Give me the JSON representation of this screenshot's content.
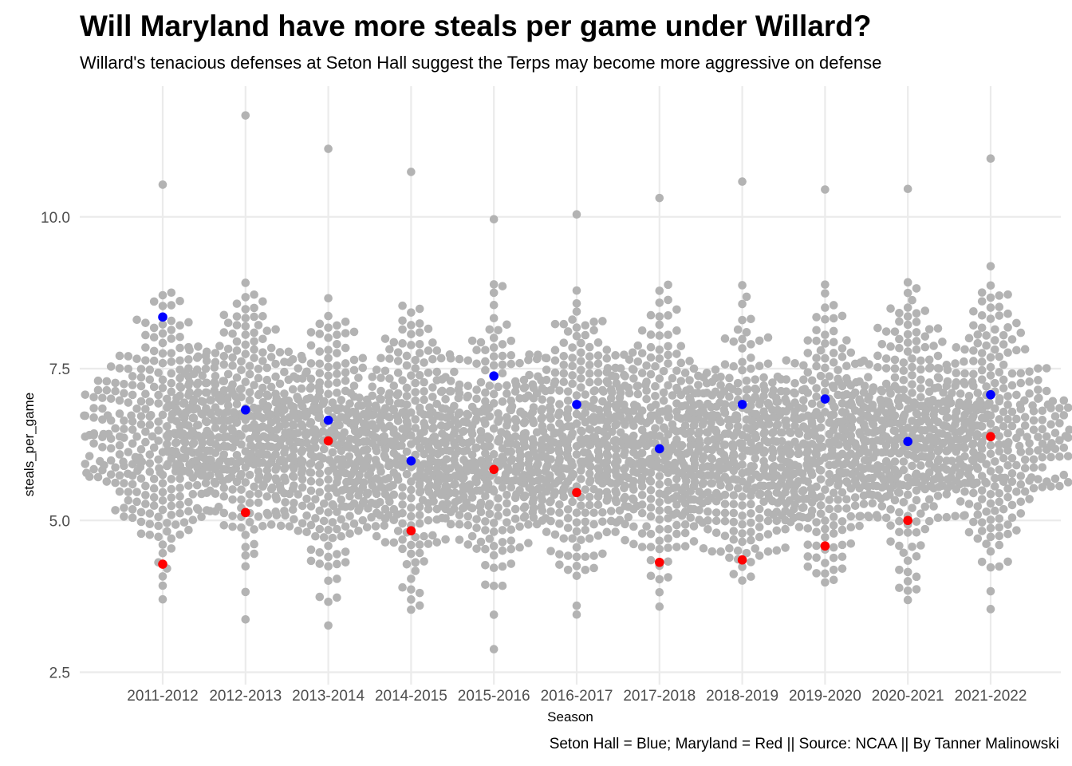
{
  "title": "Will Maryland have more steals per game under Willard?",
  "subtitle": "Willard's tenacious defenses at Seton Hall suggest the Terps may become more aggressive on defense",
  "caption": "Seton Hall = Blue; Maryland = Red || Source: NCAA || By Tanner Malinowski",
  "chart_data": {
    "type": "scatter",
    "xlabel": "Season",
    "ylabel": "steals_per_game",
    "categories": [
      "2011-2012",
      "2012-2013",
      "2013-2014",
      "2014-2015",
      "2015-2016",
      "2016-2017",
      "2017-2018",
      "2018-2019",
      "2019-2020",
      "2020-2021",
      "2021-2022"
    ],
    "ylim": [
      2.5,
      12.0
    ],
    "yticks": [
      2.5,
      5.0,
      7.5,
      10.0
    ],
    "ytick_labels": [
      "2.5",
      "5.0",
      "7.5",
      "10.0"
    ],
    "grid": true,
    "colors": {
      "all_teams": "#b3b3b3",
      "seton_hall": "#0000ff",
      "maryland": "#ff0000",
      "grid": "#ebebeb"
    },
    "series": [
      {
        "values": [
          8.35,
          6.82,
          6.65,
          5.98,
          7.38,
          6.91,
          6.18,
          6.91,
          7.0,
          6.3,
          7.07
        ]
      },
      {
        "values": [
          4.28,
          5.13,
          6.31,
          4.83,
          5.84,
          5.46,
          4.31,
          4.35,
          4.58,
          5.0,
          6.38
        ]
      }
    ],
    "distribution": {
      "note": "beeswarm of all NCAA teams per season",
      "per_season": [
        {
          "season": "2011-2012",
          "min": 3.7,
          "max": 10.53,
          "center": 6.4
        },
        {
          "season": "2012-2013",
          "min": 3.37,
          "max": 11.67,
          "center": 6.6
        },
        {
          "season": "2013-2014",
          "min": 3.27,
          "max": 11.12,
          "center": 6.2
        },
        {
          "season": "2014-2015",
          "min": 3.53,
          "max": 10.74,
          "center": 6.2
        },
        {
          "season": "2015-2016",
          "min": 2.88,
          "max": 9.96,
          "center": 6.1
        },
        {
          "season": "2016-2017",
          "min": 3.45,
          "max": 10.04,
          "center": 6.3
        },
        {
          "season": "2017-2018",
          "min": 3.58,
          "max": 10.31,
          "center": 6.3
        },
        {
          "season": "2018-2019",
          "min": 4.01,
          "max": 10.58,
          "center": 6.2
        },
        {
          "season": "2019-2020",
          "min": 3.98,
          "max": 10.45,
          "center": 6.3
        },
        {
          "season": "2020-2021",
          "min": 3.69,
          "max": 10.46,
          "center": 6.4
        },
        {
          "season": "2021-2022",
          "min": 3.54,
          "max": 10.96,
          "center": 6.5
        }
      ]
    }
  }
}
